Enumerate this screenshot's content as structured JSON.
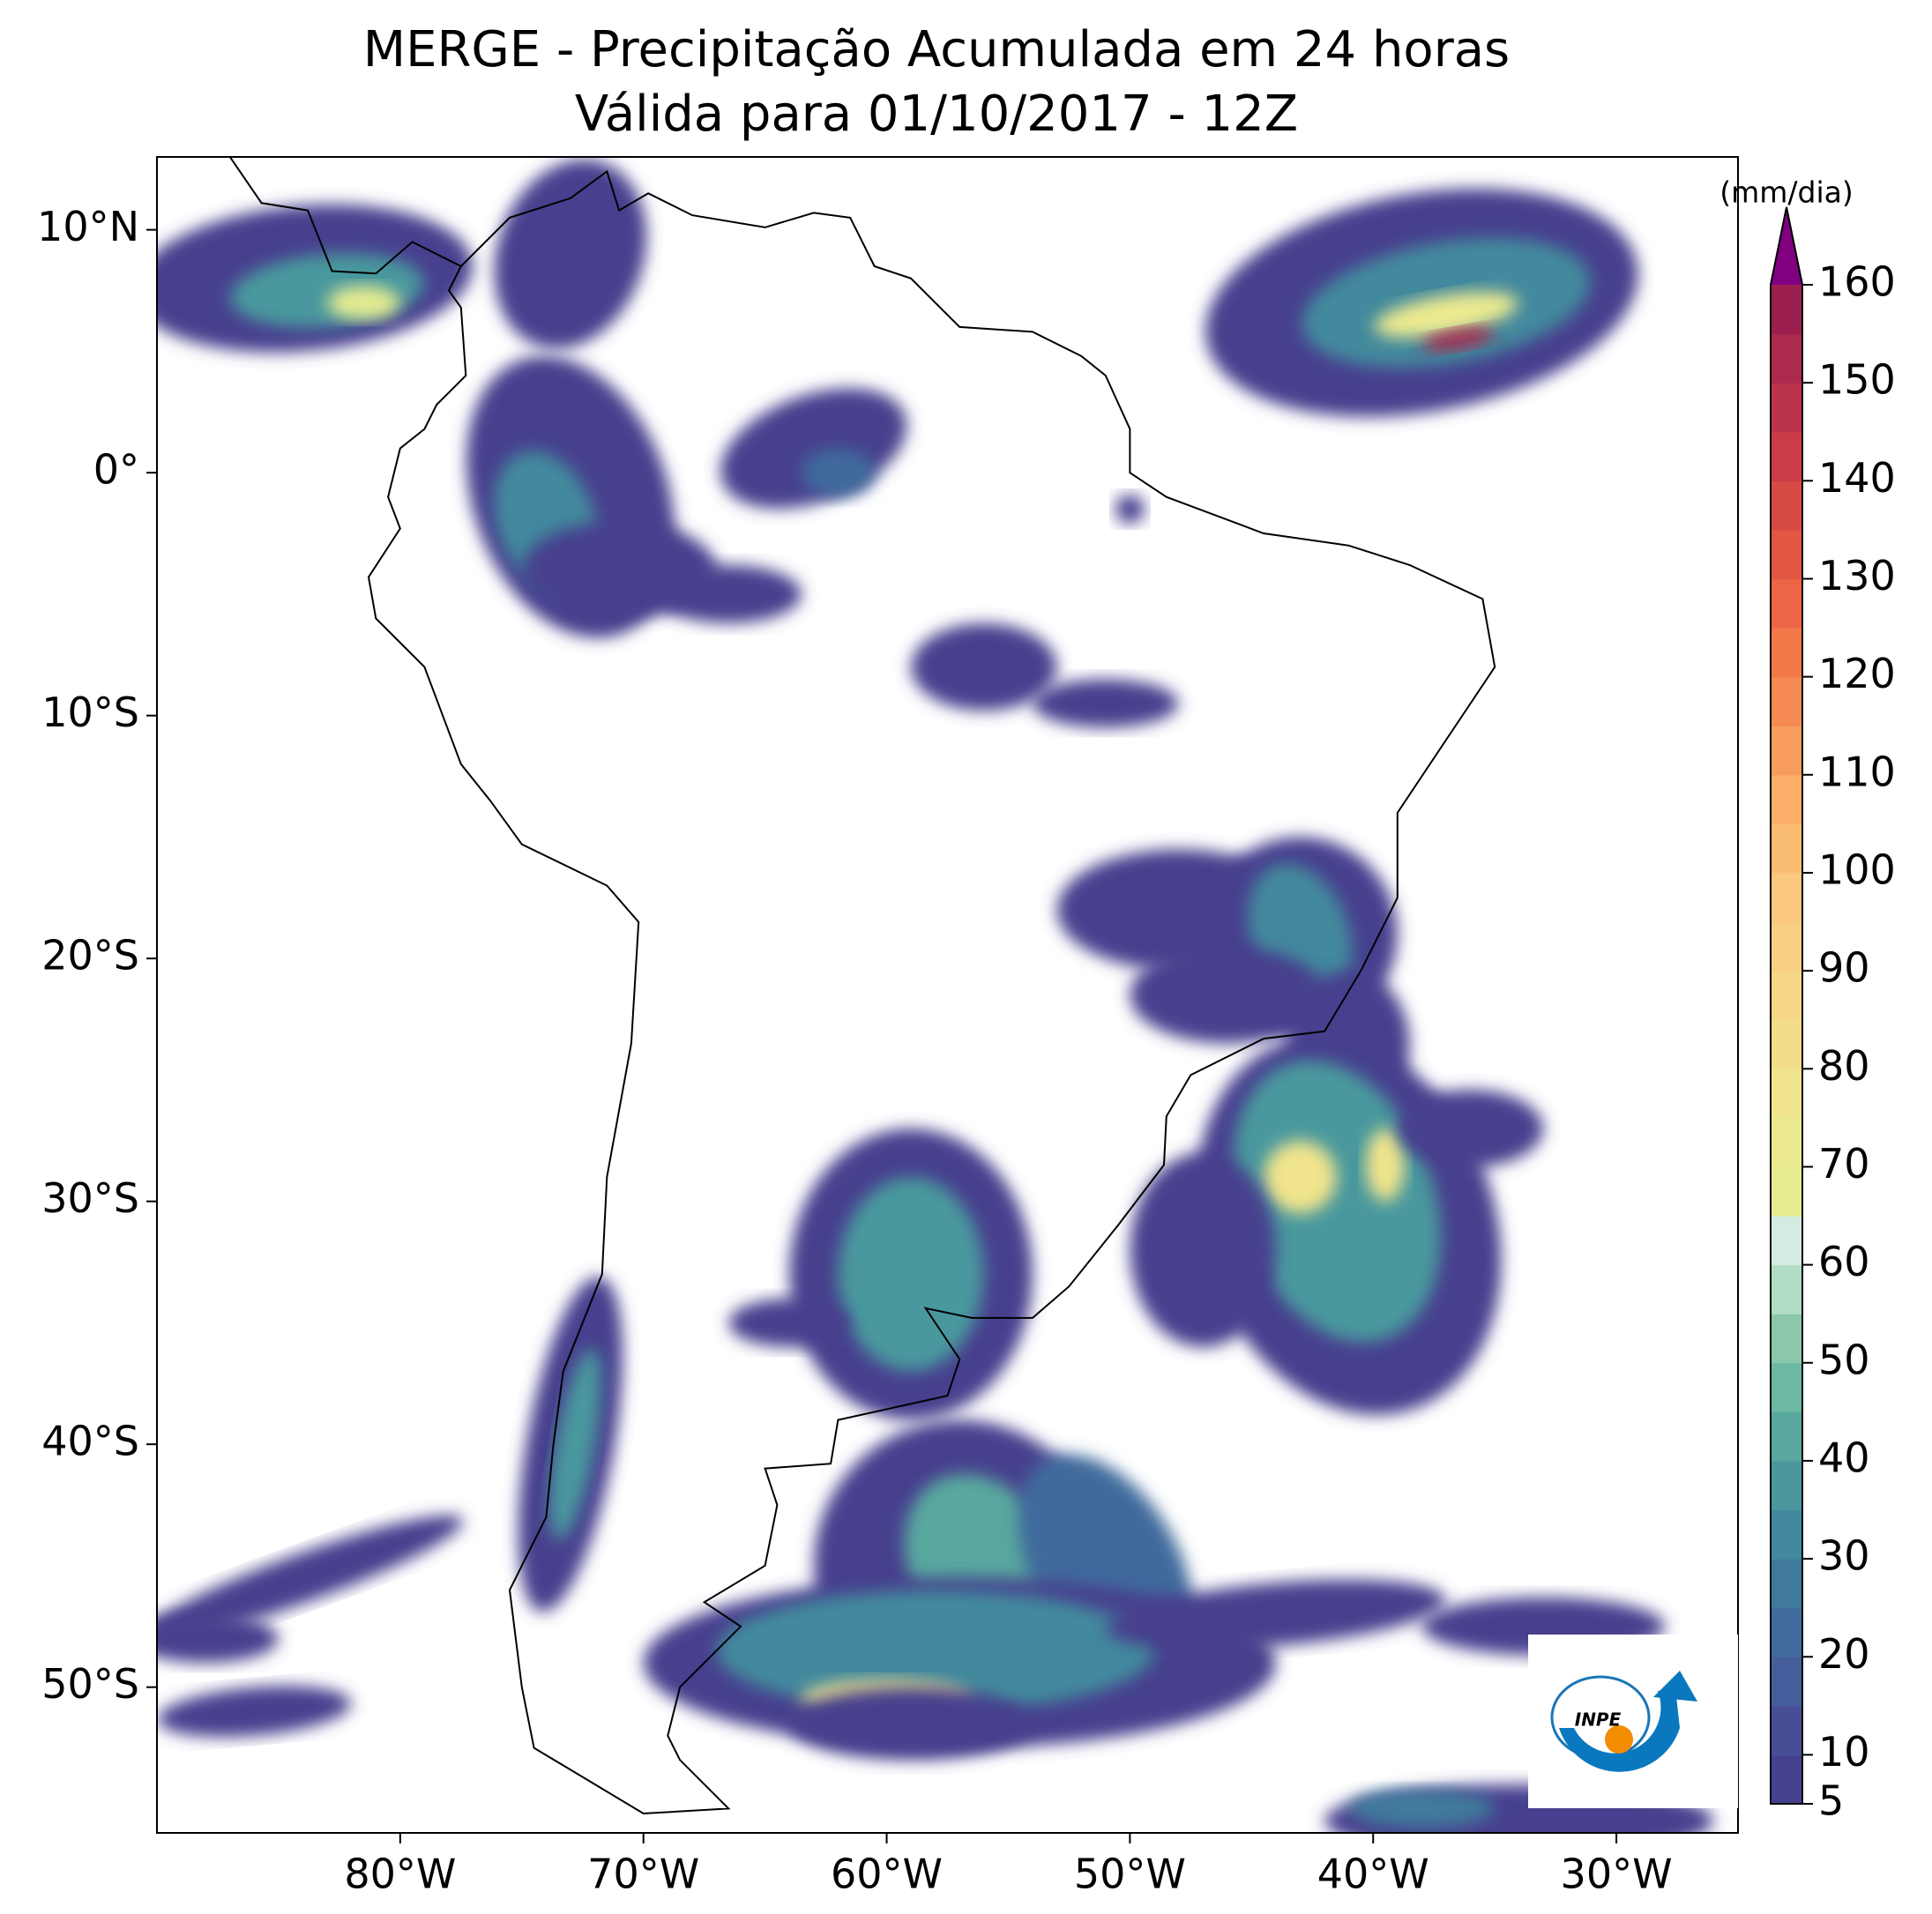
{
  "chart_data": {
    "type": "map",
    "title": "MERGE - Precipitação Acumulada em 24 horas",
    "subtitle": "Válida para 01/10/2017 - 12Z",
    "xlim": [
      -90,
      -25
    ],
    "ylim": [
      -56,
      13
    ],
    "xticks": [
      {
        "value": -80,
        "label": "80°W"
      },
      {
        "value": -70,
        "label": "70°W"
      },
      {
        "value": -60,
        "label": "60°W"
      },
      {
        "value": -50,
        "label": "50°W"
      },
      {
        "value": -40,
        "label": "40°W"
      },
      {
        "value": -30,
        "label": "30°W"
      }
    ],
    "yticks": [
      {
        "value": 10,
        "label": "10°N"
      },
      {
        "value": 0,
        "label": "0°"
      },
      {
        "value": -10,
        "label": "10°S"
      },
      {
        "value": -20,
        "label": "20°S"
      },
      {
        "value": -30,
        "label": "30°S"
      },
      {
        "value": -40,
        "label": "40°S"
      },
      {
        "value": -50,
        "label": "50°S"
      }
    ],
    "colorbar": {
      "label": "(mm/dia)",
      "lim": [
        5,
        160
      ],
      "ticks": [
        5,
        10,
        20,
        30,
        40,
        50,
        60,
        70,
        80,
        90,
        100,
        110,
        120,
        130,
        140,
        150,
        160
      ],
      "colors": [
        "#46418e",
        "#474e96",
        "#455d9b",
        "#416b9c",
        "#3f7a9c",
        "#42899d",
        "#4a989e",
        "#58a89f",
        "#6db8a3",
        "#8bc8ab",
        "#b0dcc4",
        "#d3ebe0",
        "#e5eb90",
        "#ecea90",
        "#f0e48c",
        "#f3dd89",
        "#f6d687",
        "#f8cf84",
        "#fac880",
        "#fbbd72",
        "#faae68",
        "#f89d5d",
        "#f58b53",
        "#f2784a",
        "#ec6645",
        "#e25743",
        "#d64a45",
        "#ca3d48",
        "#bb324b",
        "#ab2a4d",
        "#9a1f4e"
      ],
      "extend_color": "#800080"
    }
  },
  "logo": {
    "text": "INPE"
  }
}
